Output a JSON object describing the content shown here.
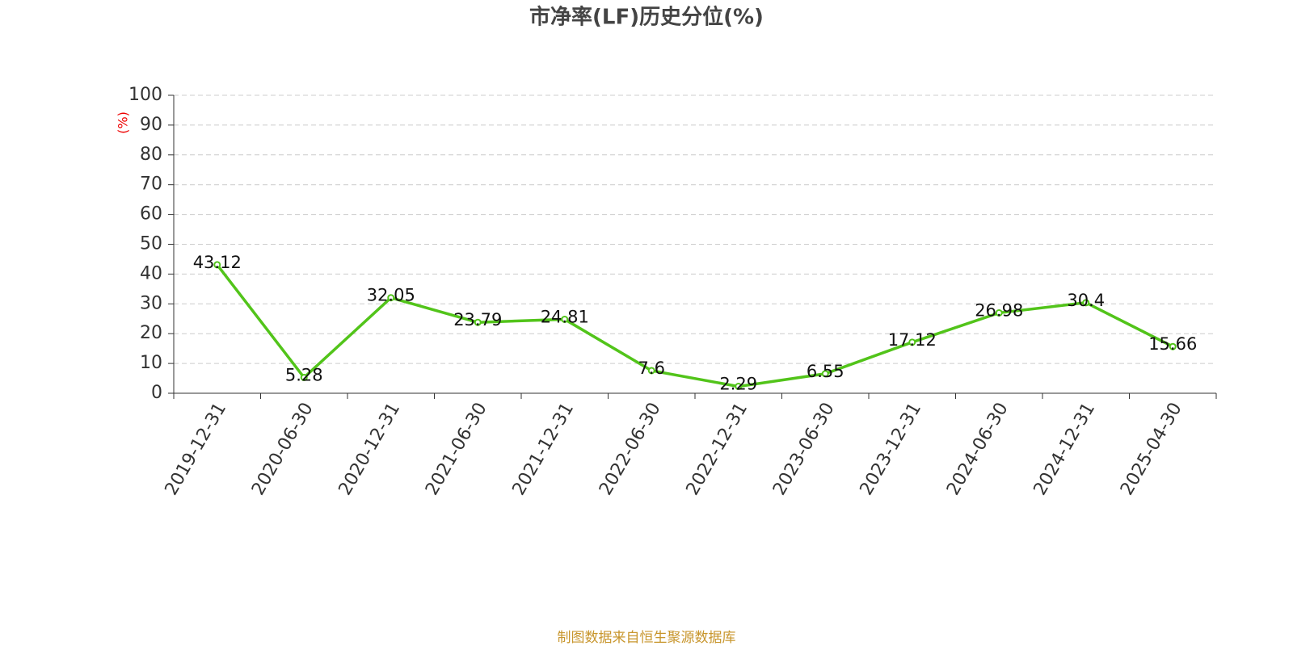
{
  "chart_data": {
    "type": "line",
    "title": "市净率(LF)历史分位(%)",
    "y_label": "(%)",
    "categories": [
      "2019-12-31",
      "2020-06-30",
      "2020-12-31",
      "2021-06-30",
      "2021-12-31",
      "2022-06-30",
      "2022-12-31",
      "2023-06-30",
      "2023-12-31",
      "2024-06-30",
      "2024-12-31",
      "2025-04-30"
    ],
    "values": [
      43.12,
      5.28,
      32.05,
      23.79,
      24.81,
      7.6,
      2.29,
      6.55,
      17.12,
      26.98,
      30.4,
      15.66
    ],
    "color": "#52c41a",
    "ylim": [
      0,
      100
    ],
    "yticks": [
      0,
      10,
      20,
      30,
      40,
      50,
      60,
      70,
      80,
      90,
      100
    ],
    "grid": true,
    "source": "制图数据来自恒生聚源数据库"
  }
}
